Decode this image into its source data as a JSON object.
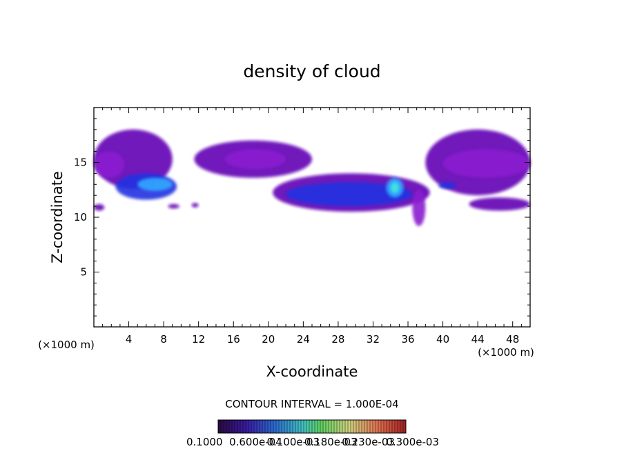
{
  "chart_data": {
    "type": "heatmap",
    "title": "density of cloud",
    "xlabel": "X-coordinate",
    "ylabel": "Z-coordinate",
    "x_unit": "(×1000 m)",
    "z_unit": "(×1000 m)",
    "xlim": [
      0,
      50
    ],
    "ylim": [
      0,
      20
    ],
    "x_ticks": [
      4,
      8,
      12,
      16,
      20,
      24,
      28,
      32,
      36,
      40,
      44,
      48
    ],
    "y_ticks": [
      5,
      10,
      15
    ],
    "contour_interval_label": "CONTOUR INTERVAL = 1.000E-04",
    "contour_interval": 0.0001,
    "colorbar_labels": [
      "0.1000",
      "0.600e-04",
      "0.100e-03",
      "0.180e-03",
      "0.230e-03",
      "0.300e-03"
    ],
    "colors": {
      "low": "#6a0db8",
      "low2": "#8a1ed0",
      "mid": "#2030e0",
      "high": "#30a8ff",
      "peak": "#40e8e0"
    },
    "regions": [
      {
        "x": [
          0,
          9
        ],
        "z": [
          12.6,
          18.0
        ],
        "level": 1
      },
      {
        "x": [
          0,
          3.5
        ],
        "z": [
          13.6,
          16.0
        ],
        "level": 2
      },
      {
        "x": [
          2.5,
          9.5
        ],
        "z": [
          11.6,
          14.0
        ],
        "level": 3
      },
      {
        "x": [
          5.0,
          9.0
        ],
        "z": [
          12.4,
          13.6
        ],
        "level": 4
      },
      {
        "x": [
          11.5,
          25.0
        ],
        "z": [
          13.6,
          17.0
        ],
        "level": 1
      },
      {
        "x": [
          15.0,
          22.0
        ],
        "z": [
          14.4,
          16.2
        ],
        "level": 2
      },
      {
        "x": [
          20.5,
          38.5
        ],
        "z": [
          10.5,
          14.0
        ],
        "level": 1
      },
      {
        "x": [
          22.0,
          36.5
        ],
        "z": [
          11.0,
          13.2
        ],
        "level": 3
      },
      {
        "x": [
          33.5,
          35.5
        ],
        "z": [
          11.8,
          13.6
        ],
        "level": 4
      },
      {
        "x": [
          34.0,
          35.0
        ],
        "z": [
          12.2,
          13.2
        ],
        "level": 5
      },
      {
        "x": [
          36.5,
          38.0
        ],
        "z": [
          9.2,
          12.5
        ],
        "level": 2
      },
      {
        "x": [
          38.0,
          50.0
        ],
        "z": [
          12.0,
          18.0
        ],
        "level": 1
      },
      {
        "x": [
          40.0,
          50.0
        ],
        "z": [
          13.6,
          16.2
        ],
        "level": 2
      },
      {
        "x": [
          39.5,
          41.5
        ],
        "z": [
          12.6,
          13.2
        ],
        "level": 3
      },
      {
        "x": [
          43.0,
          50.0
        ],
        "z": [
          10.6,
          11.8
        ],
        "level": 1
      },
      {
        "x": [
          0,
          1.2
        ],
        "z": [
          10.6,
          11.2
        ],
        "level": 1
      },
      {
        "x": [
          8.5,
          9.8
        ],
        "z": [
          10.8,
          11.2
        ],
        "level": 1
      },
      {
        "x": [
          11.2,
          12.0
        ],
        "z": [
          10.9,
          11.3
        ],
        "level": 1
      }
    ]
  }
}
